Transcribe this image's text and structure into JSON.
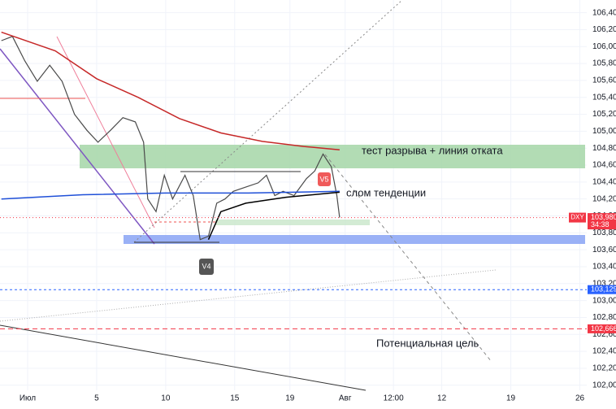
{
  "chart_data": {
    "type": "line",
    "xlim": [
      -2,
      40.5
    ],
    "ylim": [
      101.94,
      106.55
    ],
    "xticks": [
      {
        "value": 0,
        "label": "Июл"
      },
      5,
      10,
      15,
      19,
      {
        "value": 23,
        "label": "Авг"
      },
      {
        "value": 26.5,
        "label": "12:00"
      },
      {
        "value": 30,
        "label": "12"
      },
      {
        "value": 35,
        "label": "19"
      },
      {
        "value": 40,
        "label": "26"
      }
    ],
    "yticks": [
      {
        "value": 102.0,
        "label": "102,000"
      },
      {
        "value": 102.2,
        "label": "102,200"
      },
      {
        "value": 102.4,
        "label": "102,400"
      },
      {
        "value": 102.6,
        "label": "102,600"
      },
      {
        "value": 102.8,
        "label": "102,800"
      },
      {
        "value": 103.0,
        "label": "103,000"
      },
      {
        "value": 103.2,
        "label": "103,200"
      },
      {
        "value": 103.4,
        "label": "103,400"
      },
      {
        "value": 103.6,
        "label": "103,600"
      },
      {
        "value": 103.8,
        "label": "103,800"
      },
      {
        "value": 104.0,
        "label": "104,000"
      },
      {
        "value": 104.2,
        "label": "104,200"
      },
      {
        "value": 104.4,
        "label": "104,400"
      },
      {
        "value": 104.6,
        "label": "104,600"
      },
      {
        "value": 104.8,
        "label": "104,800"
      },
      {
        "value": 105.0,
        "label": "105,000"
      },
      {
        "value": 105.2,
        "label": "105,200"
      },
      {
        "value": 105.4,
        "label": "105,400"
      },
      {
        "value": 105.6,
        "label": "105,600"
      },
      {
        "value": 105.8,
        "label": "105,800"
      },
      {
        "value": 106.0,
        "label": "106,000"
      },
      {
        "value": 106.2,
        "label": "106,200"
      },
      {
        "value": 106.4,
        "label": "106,400"
      }
    ],
    "grid": true,
    "series": [
      {
        "color": "#4a4a4a",
        "width": 1.2,
        "x": [
          -1.9,
          -1.1,
          -0.2,
          0.7,
          1.6,
          2.5,
          3.4,
          4.3,
          5.1,
          6.0,
          6.9,
          7.8,
          8.4,
          8.7,
          9.3,
          9.9,
          10.5,
          11.4,
          12.0,
          12.5,
          13.1,
          13.7,
          14.3,
          14.9,
          15.8,
          16.7,
          17.3,
          17.9,
          18.5,
          19.3,
          20.2,
          20.8,
          21.4,
          22.0,
          22.4,
          22.6
        ],
        "values": [
          106.07,
          106.12,
          105.83,
          105.59,
          105.78,
          105.59,
          105.2,
          105.01,
          104.87,
          105.01,
          105.16,
          105.11,
          104.87,
          104.2,
          104.05,
          104.48,
          104.2,
          104.48,
          104.24,
          103.72,
          103.76,
          104.15,
          104.2,
          104.29,
          104.34,
          104.39,
          104.48,
          104.24,
          104.29,
          104.24,
          104.44,
          104.53,
          104.73,
          104.58,
          104.24,
          103.98
        ]
      },
      {
        "color": "#c62828",
        "width": 1.5,
        "x": [
          -1.9,
          2.0,
          5.0,
          8.0,
          11.0,
          14.0,
          17.0,
          20.0,
          22.6
        ],
        "values": [
          106.17,
          105.95,
          105.62,
          105.4,
          105.15,
          104.98,
          104.88,
          104.82,
          104.78
        ]
      },
      {
        "color": "#1e4fd8",
        "width": 1.5,
        "x": [
          -1.9,
          4.0,
          10.0,
          16.0,
          22.6
        ],
        "values": [
          104.2,
          104.25,
          104.27,
          104.27,
          104.29
        ]
      },
      {
        "color": "#000000",
        "width": 1.5,
        "x": [
          13.1,
          14.0,
          15.8,
          18.7,
          22.6
        ],
        "values": [
          103.72,
          104.05,
          104.15,
          104.22,
          104.28
        ]
      }
    ],
    "price_lines": [
      {
        "value": 103.98,
        "label": "103,980",
        "color": "#f23645",
        "symbol": "DXY",
        "countdown": "34:38",
        "dash": "1 3"
      },
      {
        "value": 103.129,
        "label": "103,129",
        "color": "#2962ff",
        "dash": "3 3"
      },
      {
        "value": 102.666,
        "label": "102,666",
        "color": "#f23645",
        "dash": "6 4"
      }
    ],
    "annotations": [
      "тест разрыва + линия отката",
      "слом тенденции",
      "Потенциальная цель"
    ],
    "markers": [
      "V4",
      "V5"
    ]
  }
}
